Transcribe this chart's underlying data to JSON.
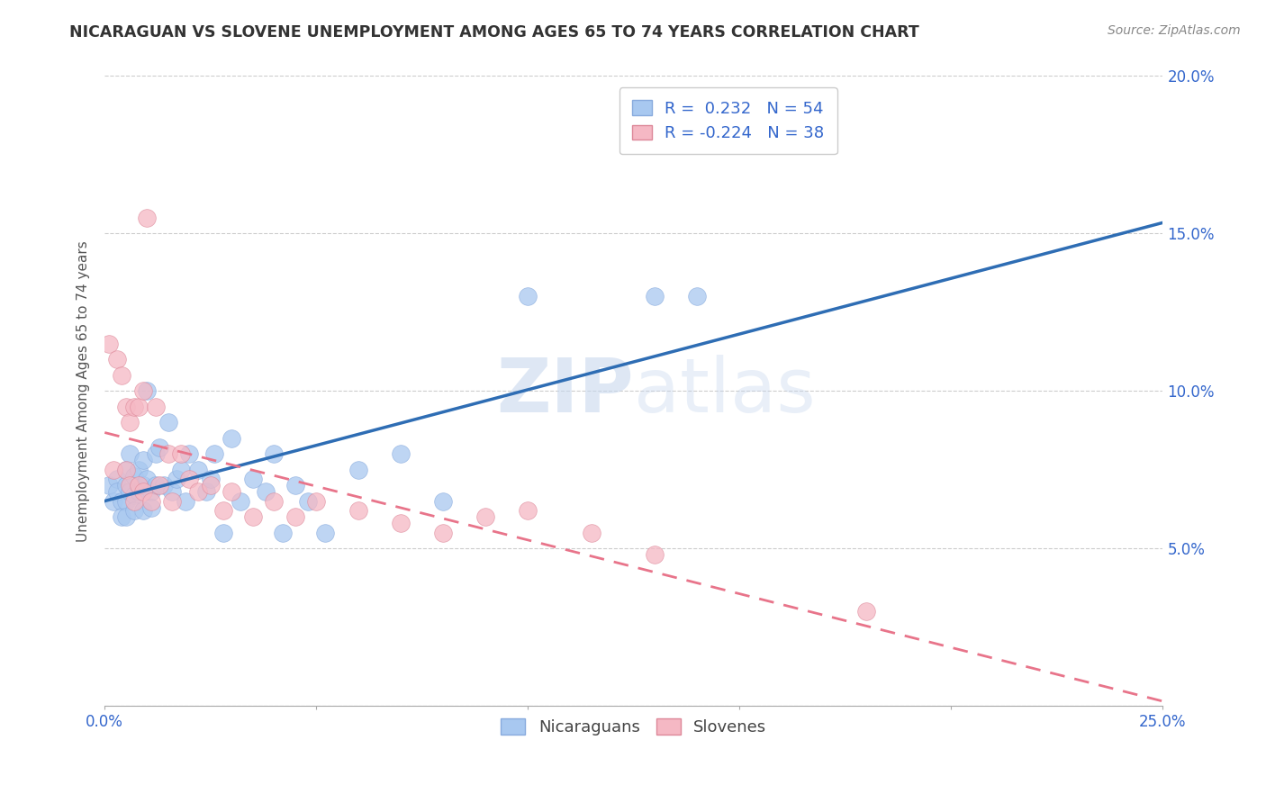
{
  "title": "NICARAGUAN VS SLOVENE UNEMPLOYMENT AMONG AGES 65 TO 74 YEARS CORRELATION CHART",
  "source": "Source: ZipAtlas.com",
  "ylabel": "Unemployment Among Ages 65 to 74 years",
  "xlim": [
    0,
    0.25
  ],
  "ylim": [
    0,
    0.2
  ],
  "xticks": [
    0.0,
    0.05,
    0.1,
    0.15,
    0.2,
    0.25
  ],
  "yticks": [
    0.0,
    0.05,
    0.1,
    0.15,
    0.2
  ],
  "xticklabels": [
    "0.0%",
    "",
    "",
    "",
    "",
    "25.0%"
  ],
  "yticklabels_right": [
    "",
    "5.0%",
    "10.0%",
    "15.0%",
    "20.0%"
  ],
  "r_nicaraguan": 0.232,
  "n_nicaraguan": 54,
  "r_slovene": -0.224,
  "n_slovene": 38,
  "blue_color": "#A8C8F0",
  "pink_color": "#F5B8C4",
  "blue_line_color": "#2E6DB4",
  "pink_line_color": "#E8748A",
  "watermark_zip": "ZIP",
  "watermark_atlas": "atlas",
  "blue_scatter_x": [
    0.001,
    0.002,
    0.003,
    0.003,
    0.004,
    0.004,
    0.005,
    0.005,
    0.005,
    0.005,
    0.006,
    0.006,
    0.007,
    0.007,
    0.007,
    0.008,
    0.008,
    0.009,
    0.009,
    0.009,
    0.01,
    0.01,
    0.011,
    0.011,
    0.012,
    0.012,
    0.013,
    0.014,
    0.015,
    0.016,
    0.017,
    0.018,
    0.019,
    0.02,
    0.022,
    0.024,
    0.025,
    0.026,
    0.028,
    0.03,
    0.032,
    0.035,
    0.038,
    0.04,
    0.042,
    0.045,
    0.048,
    0.052,
    0.06,
    0.07,
    0.08,
    0.1,
    0.13,
    0.14
  ],
  "blue_scatter_y": [
    0.07,
    0.065,
    0.072,
    0.068,
    0.065,
    0.06,
    0.075,
    0.07,
    0.065,
    0.06,
    0.08,
    0.068,
    0.073,
    0.067,
    0.062,
    0.075,
    0.068,
    0.078,
    0.07,
    0.062,
    0.1,
    0.072,
    0.068,
    0.063,
    0.08,
    0.07,
    0.082,
    0.07,
    0.09,
    0.068,
    0.072,
    0.075,
    0.065,
    0.08,
    0.075,
    0.068,
    0.072,
    0.08,
    0.055,
    0.085,
    0.065,
    0.072,
    0.068,
    0.08,
    0.055,
    0.07,
    0.065,
    0.055,
    0.075,
    0.08,
    0.065,
    0.13,
    0.13,
    0.13
  ],
  "pink_scatter_x": [
    0.001,
    0.002,
    0.003,
    0.004,
    0.005,
    0.005,
    0.006,
    0.006,
    0.007,
    0.007,
    0.008,
    0.008,
    0.009,
    0.009,
    0.01,
    0.011,
    0.012,
    0.013,
    0.015,
    0.016,
    0.018,
    0.02,
    0.022,
    0.025,
    0.028,
    0.03,
    0.035,
    0.04,
    0.045,
    0.05,
    0.06,
    0.07,
    0.08,
    0.09,
    0.1,
    0.115,
    0.13,
    0.18
  ],
  "pink_scatter_y": [
    0.115,
    0.075,
    0.11,
    0.105,
    0.095,
    0.075,
    0.09,
    0.07,
    0.095,
    0.065,
    0.095,
    0.07,
    0.1,
    0.068,
    0.155,
    0.065,
    0.095,
    0.07,
    0.08,
    0.065,
    0.08,
    0.072,
    0.068,
    0.07,
    0.062,
    0.068,
    0.06,
    0.065,
    0.06,
    0.065,
    0.062,
    0.058,
    0.055,
    0.06,
    0.062,
    0.055,
    0.048,
    0.03
  ]
}
